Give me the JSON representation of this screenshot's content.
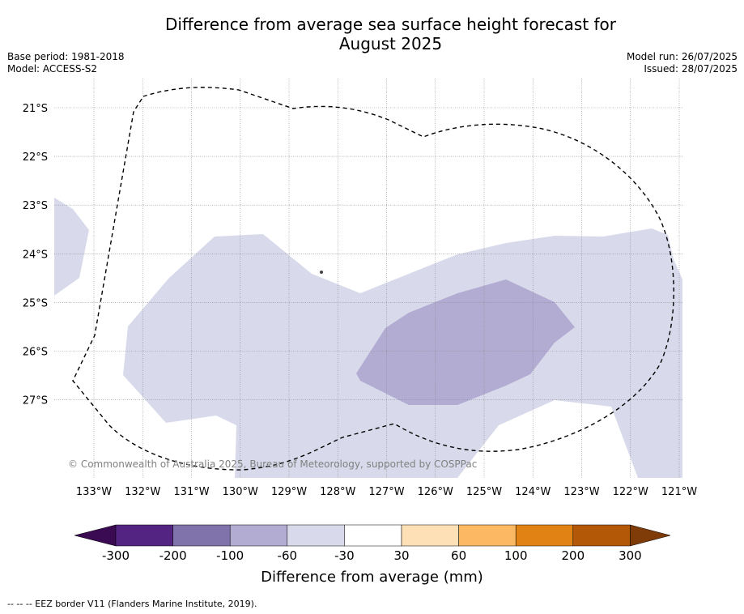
{
  "title_line1": "Difference from average sea surface height forecast for",
  "title_line2": "August 2025",
  "meta_left": {
    "base_period": "Base period: 1981-2018",
    "model": "Model: ACCESS-S2"
  },
  "meta_right": {
    "model_run": "Model run: 26/07/2025",
    "issued": "Issued: 28/07/2025"
  },
  "copyright": "© Commonwealth of Australia 2025, Bureau of Meteorology, supported by COSPPac",
  "lat_labels": [
    "21°S",
    "22°S",
    "23°S",
    "24°S",
    "25°S",
    "26°S",
    "27°S"
  ],
  "lon_labels": [
    "133°W",
    "132°W",
    "131°W",
    "130°W",
    "129°W",
    "128°W",
    "127°W",
    "126°W",
    "125°W",
    "124°W",
    "123°W",
    "122°W",
    "121°W"
  ],
  "colorbar": {
    "title": "Difference from average (mm)",
    "tick_labels": [
      "-300",
      "-200",
      "-100",
      "-60",
      "-30",
      "30",
      "60",
      "100",
      "200",
      "300"
    ],
    "colors": [
      "#3a0a52",
      "#542483",
      "#8073ac",
      "#b2abd2",
      "#d8daeb",
      "#ffffff",
      "#fee0b6",
      "#fdb863",
      "#e08214",
      "#b35806",
      "#7f3b08"
    ]
  },
  "footnote": "-- -- -- EEZ border V11 (Flanders Marine Institute, 2019)."
}
